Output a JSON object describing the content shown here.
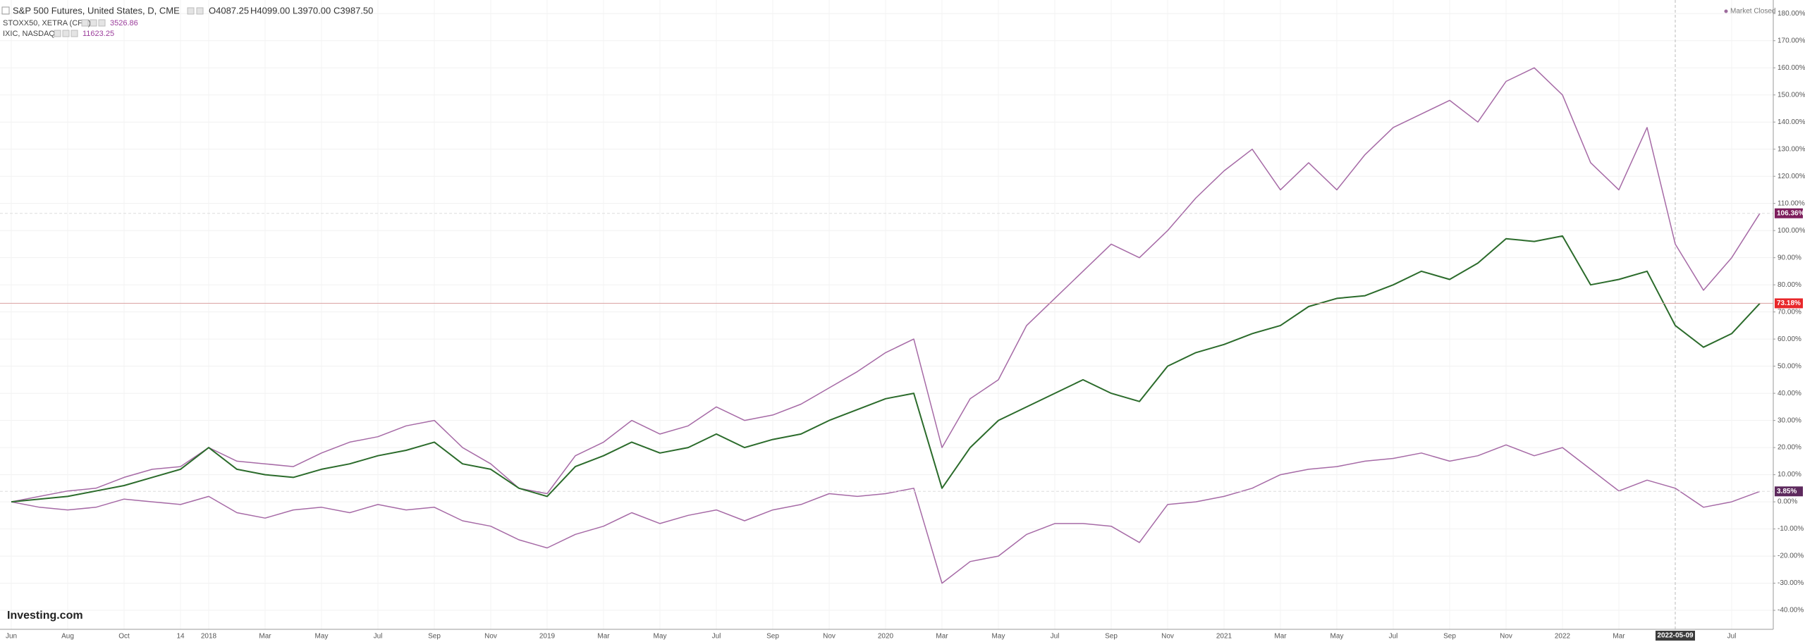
{
  "header": {
    "symbol": "S&P 500 Futures, United States, D, CME",
    "open": "O4087.25",
    "high": "H4099.00",
    "low": "L3970.00",
    "close": "C3987.50",
    "compare_1": "STOXX50, XETRA (CFD)",
    "compare_1_value": "3526.86",
    "compare_2": "IXIC, NASDAQ",
    "compare_2_value": "11623.25",
    "status": "Market Closed",
    "logo": "Investing.com",
    "cursor_date": "2022-05-09"
  },
  "chart_data": {
    "type": "line",
    "categories": [
      "Jun",
      null,
      "Aug",
      null,
      "Oct",
      null,
      "14",
      "2018",
      null,
      "Mar",
      null,
      "May",
      null,
      "Jul",
      null,
      "Sep",
      null,
      "Nov",
      null,
      "2019",
      null,
      "Mar",
      null,
      "May",
      null,
      "Jul",
      null,
      "Sep",
      null,
      "Nov",
      null,
      "2020",
      null,
      "Mar",
      null,
      "May",
      null,
      "Jul",
      null,
      "Sep",
      null,
      "Nov",
      null,
      "2021",
      null,
      "Mar",
      null,
      "May",
      null,
      "Jul",
      null,
      "Sep",
      null,
      "Nov",
      null,
      "2022",
      null,
      "Mar",
      null,
      null,
      null,
      "Jul",
      null
    ],
    "series": [
      {
        "name": "S&P 500 Futures",
        "color": "#2b6b2b",
        "label_color": "#e8282b",
        "values": [
          0,
          1,
          2,
          4,
          6,
          9,
          12,
          20,
          12,
          10,
          9,
          12,
          14,
          17,
          19,
          22,
          14,
          12,
          5,
          2,
          13,
          17,
          22,
          18,
          20,
          25,
          20,
          23,
          25,
          30,
          34,
          38,
          40,
          5,
          20,
          30,
          35,
          40,
          45,
          40,
          37,
          50,
          55,
          58,
          62,
          65,
          72,
          75,
          76,
          80,
          85,
          82,
          88,
          97,
          96,
          98,
          80,
          82,
          85,
          65,
          57,
          62,
          73.18
        ],
        "value_labels": [
          null,
          null,
          null,
          null,
          null,
          null,
          null,
          null,
          null,
          null,
          null,
          null,
          null,
          null,
          null,
          null,
          null,
          null,
          null,
          null,
          null,
          null,
          null,
          null,
          null,
          null,
          null,
          null,
          null,
          null,
          null,
          null,
          null,
          null,
          null,
          null,
          null,
          null,
          null,
          null,
          null,
          null,
          null,
          null,
          null,
          null,
          null,
          null,
          null,
          null,
          null,
          null,
          null,
          null,
          null,
          null,
          null,
          null,
          null,
          null,
          null,
          null,
          "73.18%"
        ]
      },
      {
        "name": "IXIC",
        "color": "#a66aa6",
        "label_color": "#7d1d5c",
        "values": [
          0,
          2,
          4,
          5,
          9,
          12,
          13,
          20,
          15,
          14,
          13,
          18,
          22,
          24,
          28,
          30,
          20,
          14,
          5,
          3,
          17,
          22,
          30,
          25,
          28,
          35,
          30,
          32,
          36,
          42,
          48,
          55,
          60,
          20,
          38,
          45,
          65,
          75,
          85,
          95,
          90,
          100,
          112,
          122,
          130,
          115,
          125,
          115,
          128,
          138,
          143,
          148,
          140,
          155,
          160,
          150,
          125,
          115,
          138,
          95,
          78,
          90,
          106.36
        ],
        "value_labels": [
          null,
          null,
          null,
          null,
          null,
          null,
          null,
          null,
          null,
          null,
          null,
          null,
          null,
          null,
          null,
          null,
          null,
          null,
          null,
          null,
          null,
          null,
          null,
          null,
          null,
          null,
          null,
          null,
          null,
          null,
          null,
          null,
          null,
          null,
          null,
          null,
          null,
          null,
          null,
          null,
          null,
          null,
          null,
          null,
          null,
          null,
          null,
          null,
          null,
          null,
          null,
          null,
          null,
          null,
          null,
          null,
          null,
          null,
          null,
          null,
          null,
          null,
          "106.36%"
        ]
      },
      {
        "name": "STOXX50",
        "color": "#a66aa6",
        "label_color": "#5e2a5e",
        "values": [
          0,
          -2,
          -3,
          -2,
          1,
          0,
          -1,
          2,
          -4,
          -6,
          -3,
          -2,
          -4,
          -1,
          -3,
          -2,
          -7,
          -9,
          -14,
          -17,
          -12,
          -9,
          -4,
          -8,
          -5,
          -3,
          -7,
          -3,
          -1,
          3,
          2,
          3,
          5,
          -30,
          -22,
          -20,
          -12,
          -8,
          -8,
          -9,
          -15,
          -1,
          0,
          2,
          5,
          10,
          12,
          13,
          15,
          16,
          18,
          15,
          17,
          21,
          17,
          20,
          12,
          4,
          8,
          5,
          -2,
          0,
          3.85
        ],
        "value_labels": [
          null,
          null,
          null,
          null,
          null,
          null,
          null,
          null,
          null,
          null,
          null,
          null,
          null,
          null,
          null,
          null,
          null,
          null,
          null,
          null,
          null,
          null,
          null,
          null,
          null,
          null,
          null,
          null,
          null,
          null,
          null,
          null,
          null,
          null,
          null,
          null,
          null,
          null,
          null,
          null,
          null,
          null,
          null,
          null,
          null,
          null,
          null,
          null,
          null,
          null,
          null,
          null,
          null,
          null,
          null,
          null,
          null,
          null,
          null,
          null,
          null,
          null,
          "3.85%"
        ]
      }
    ],
    "ylim": [
      -47,
      185
    ],
    "yticks": [
      {
        "value": -40,
        "label": "-40.00%"
      },
      {
        "value": -30,
        "label": "-30.00%"
      },
      {
        "value": -20,
        "label": "-20.00%"
      },
      {
        "value": -10,
        "label": "-10.00%"
      },
      {
        "value": 0,
        "label": "0.00%"
      },
      {
        "value": 10,
        "label": "10.00%"
      },
      {
        "value": 20,
        "label": "20.00%"
      },
      {
        "value": 30,
        "label": "30.00%"
      },
      {
        "value": 40,
        "label": "40.00%"
      },
      {
        "value": 50,
        "label": "50.00%"
      },
      {
        "value": 60,
        "label": "60.00%"
      },
      {
        "value": 70,
        "label": "70.00%"
      },
      {
        "value": 80,
        "label": "80.00%"
      },
      {
        "value": 90,
        "label": "90.00%"
      },
      {
        "value": 100,
        "label": "100.00%"
      },
      {
        "value": 110,
        "label": "110.00%"
      },
      {
        "value": 120,
        "label": "120.00%"
      },
      {
        "value": 130,
        "label": "130.00%"
      },
      {
        "value": 140,
        "label": "140.00%"
      },
      {
        "value": 150,
        "label": "150.00%"
      },
      {
        "value": 160,
        "label": "160.00%"
      },
      {
        "value": 170,
        "label": "170.00%"
      },
      {
        "value": 180,
        "label": "180.00%"
      }
    ],
    "grid": true
  }
}
